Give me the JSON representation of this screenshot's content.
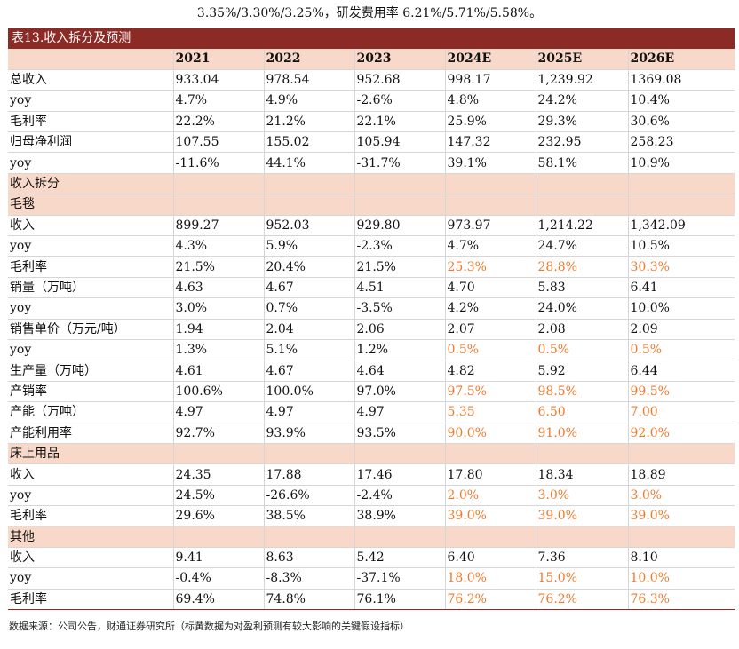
{
  "top_text": "3.35%/3.30%/3.25%，研发费用率 6.21%/5.71%/5.58%。",
  "table_title": "表13.收入拆分及预测",
  "years": [
    "2021",
    "2022",
    "2023",
    "2024E",
    "2025E",
    "2026E"
  ],
  "rows": [
    {
      "type": "row",
      "label": "总收入",
      "indent": 0,
      "values": [
        "933.04",
        "978.54",
        "952.68",
        "998.17",
        "1,239.92",
        "1369.08"
      ],
      "hl": [
        0,
        0,
        0,
        0,
        0,
        0
      ]
    },
    {
      "type": "row",
      "label": "yoy",
      "indent": 0,
      "values": [
        "4.7%",
        "4.9%",
        "-2.6%",
        "4.8%",
        "24.2%",
        "10.4%"
      ],
      "hl": [
        0,
        0,
        0,
        0,
        0,
        0
      ]
    },
    {
      "type": "row",
      "label": "毛利率",
      "indent": 0,
      "values": [
        "22.2%",
        "21.2%",
        "22.1%",
        "25.9%",
        "29.3%",
        "30.6%"
      ],
      "hl": [
        0,
        0,
        0,
        0,
        0,
        0
      ]
    },
    {
      "type": "row",
      "label": "归母净利润",
      "indent": 0,
      "values": [
        "107.55",
        "155.02",
        "105.94",
        "147.32",
        "232.95",
        "258.23"
      ],
      "hl": [
        0,
        0,
        0,
        0,
        0,
        0
      ]
    },
    {
      "type": "row",
      "label": "yoy",
      "indent": 0,
      "values": [
        "-11.6%",
        "44.1%",
        "-31.7%",
        "39.1%",
        "58.1%",
        "10.9%"
      ],
      "hl": [
        0,
        0,
        0,
        0,
        0,
        0
      ]
    },
    {
      "type": "section",
      "label": "收入拆分"
    },
    {
      "type": "section",
      "label": "毛毯"
    },
    {
      "type": "row",
      "label": "收入",
      "indent": 0,
      "values": [
        "899.27",
        "952.03",
        "929.80",
        "973.97",
        "1,214.22",
        "1,342.09"
      ],
      "hl": [
        0,
        0,
        0,
        0,
        0,
        0
      ]
    },
    {
      "type": "row",
      "label": "yoy",
      "indent": 0,
      "values": [
        "4.3%",
        "5.9%",
        "-2.3%",
        "4.7%",
        "24.7%",
        "10.5%"
      ],
      "hl": [
        0,
        0,
        0,
        0,
        0,
        0
      ]
    },
    {
      "type": "row",
      "label": "毛利率",
      "indent": 0,
      "values": [
        "21.5%",
        "20.4%",
        "21.5%",
        "25.3%",
        "28.8%",
        "30.3%"
      ],
      "hl": [
        0,
        0,
        0,
        1,
        1,
        1
      ]
    },
    {
      "type": "row",
      "label": "销量（万吨）",
      "indent": 2,
      "values": [
        "4.63",
        "4.67",
        "4.51",
        "4.70",
        "5.83",
        "6.41"
      ],
      "hl": [
        0,
        0,
        0,
        0,
        0,
        0
      ]
    },
    {
      "type": "row",
      "label": "yoy",
      "indent": 3,
      "values": [
        "3.0%",
        "0.7%",
        "-3.5%",
        "4.2%",
        "24.0%",
        "10.0%"
      ],
      "hl": [
        0,
        0,
        0,
        0,
        0,
        0
      ]
    },
    {
      "type": "row",
      "label": "销售单价（万元/吨）",
      "indent": 1,
      "values": [
        "1.94",
        "2.04",
        "2.06",
        "2.07",
        "2.08",
        "2.09"
      ],
      "hl": [
        0,
        0,
        0,
        0,
        0,
        0
      ]
    },
    {
      "type": "row",
      "label": "yoy",
      "indent": 3,
      "values": [
        "1.3%",
        "5.1%",
        "1.2%",
        "0.5%",
        "0.5%",
        "0.5%"
      ],
      "hl": [
        0,
        0,
        0,
        1,
        1,
        1
      ]
    },
    {
      "type": "row",
      "label": "生产量（万吨）",
      "indent": 2,
      "values": [
        "4.61",
        "4.67",
        "4.64",
        "4.82",
        "5.92",
        "6.44"
      ],
      "hl": [
        0,
        0,
        0,
        0,
        0,
        0
      ]
    },
    {
      "type": "row",
      "label": "产销率",
      "indent": 3,
      "values": [
        "100.6%",
        "100.0%",
        "97.0%",
        "97.5%",
        "98.5%",
        "99.5%"
      ],
      "hl": [
        0,
        0,
        0,
        1,
        1,
        1
      ]
    },
    {
      "type": "row",
      "label": "产能（万吨）",
      "indent": 2,
      "values": [
        "4.97",
        "4.97",
        "4.97",
        "5.35",
        "6.50",
        "7.00"
      ],
      "hl": [
        0,
        0,
        0,
        1,
        1,
        1
      ]
    },
    {
      "type": "row",
      "label": "产能利用率",
      "indent": 2,
      "values": [
        "92.7%",
        "93.9%",
        "93.5%",
        "90.0%",
        "91.0%",
        "92.0%"
      ],
      "hl": [
        0,
        0,
        0,
        1,
        1,
        1
      ]
    },
    {
      "type": "section",
      "label": "床上用品"
    },
    {
      "type": "row",
      "label": "收入",
      "indent": 0,
      "values": [
        "24.35",
        "17.88",
        "17.46",
        "17.80",
        "18.34",
        "18.89"
      ],
      "hl": [
        0,
        0,
        0,
        0,
        0,
        0
      ]
    },
    {
      "type": "row",
      "label": "yoy",
      "indent": 0,
      "values": [
        "24.5%",
        "-26.6%",
        "-2.4%",
        "2.0%",
        "3.0%",
        "3.0%"
      ],
      "hl": [
        0,
        0,
        0,
        1,
        1,
        1
      ]
    },
    {
      "type": "row",
      "label": "毛利率",
      "indent": 0,
      "values": [
        "29.6%",
        "38.5%",
        "38.9%",
        "39.0%",
        "39.0%",
        "39.0%"
      ],
      "hl": [
        0,
        0,
        0,
        1,
        1,
        1
      ]
    },
    {
      "type": "section",
      "label": "其他"
    },
    {
      "type": "row",
      "label": "收入",
      "indent": 0,
      "values": [
        "9.41",
        "8.63",
        "5.42",
        "6.40",
        "7.36",
        "8.10"
      ],
      "hl": [
        0,
        0,
        0,
        0,
        0,
        0
      ]
    },
    {
      "type": "row",
      "label": "yoy",
      "indent": 0,
      "values": [
        "-0.4%",
        "-8.3%",
        "-37.1%",
        "18.0%",
        "15.0%",
        "10.0%"
      ],
      "hl": [
        0,
        0,
        0,
        1,
        1,
        1
      ]
    },
    {
      "type": "row",
      "label": "毛利率",
      "indent": 0,
      "values": [
        "69.4%",
        "74.8%",
        "76.1%",
        "76.2%",
        "76.2%",
        "76.3%"
      ],
      "hl": [
        0,
        0,
        0,
        1,
        1,
        1
      ]
    }
  ],
  "source_note": "数据来源：公司公告，财通证券研究所（标黄数据为对盈利预测有较大影响的关键假设指标）",
  "colors": {
    "title_bg": "#8c2a25",
    "header_bg": "#f8d8c8",
    "highlight": "#ee7a2e"
  }
}
